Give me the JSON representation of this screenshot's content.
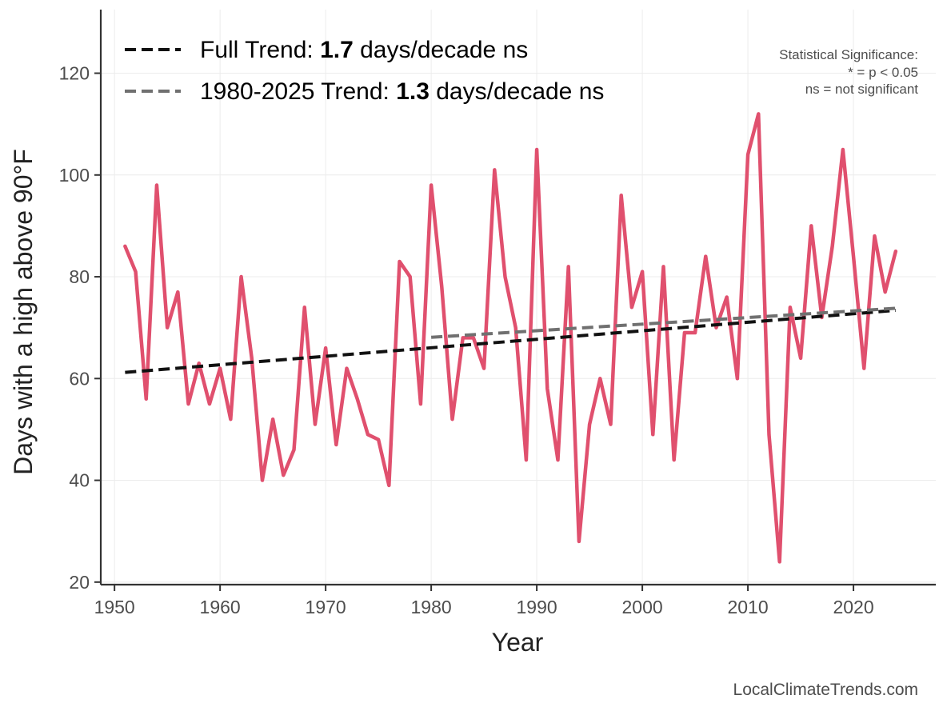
{
  "chart_data": {
    "type": "line",
    "title": "",
    "xlabel": "Year",
    "ylabel": "Days with a high above 90°F",
    "xlim": [
      1948.7,
      2027.8
    ],
    "ylim": [
      19.5,
      132.5
    ],
    "x_ticks": [
      1950,
      1960,
      1970,
      1980,
      1990,
      2000,
      2010,
      2020
    ],
    "y_ticks": [
      20,
      40,
      60,
      80,
      100,
      120
    ],
    "grid": true,
    "series": [
      {
        "name": "Days with a high above 90°F",
        "color": "#e0506e",
        "x": [
          1951,
          1952,
          1953,
          1954,
          1955,
          1956,
          1957,
          1958,
          1959,
          1960,
          1961,
          1962,
          1963,
          1964,
          1965,
          1966,
          1967,
          1968,
          1969,
          1970,
          1971,
          1972,
          1973,
          1974,
          1975,
          1976,
          1977,
          1978,
          1979,
          1980,
          1981,
          1982,
          1983,
          1984,
          1985,
          1986,
          1987,
          1988,
          1989,
          1990,
          1991,
          1992,
          1993,
          1994,
          1995,
          1996,
          1997,
          1998,
          1999,
          2000,
          2001,
          2002,
          2003,
          2004,
          2005,
          2006,
          2007,
          2008,
          2009,
          2010,
          2011,
          2012,
          2013,
          2014,
          2015,
          2016,
          2017,
          2018,
          2019,
          2020,
          2021,
          2022,
          2023,
          2024
        ],
        "values": [
          86,
          81,
          56,
          98,
          70,
          77,
          55,
          63,
          55,
          62,
          52,
          80,
          64,
          40,
          52,
          41,
          46,
          74,
          51,
          66,
          47,
          62,
          56,
          49,
          48,
          39,
          83,
          80,
          55,
          98,
          78,
          52,
          68,
          68,
          62,
          101,
          80,
          70,
          44,
          105,
          58,
          44,
          82,
          28,
          51,
          60,
          51,
          96,
          74,
          81,
          49,
          82,
          44,
          69,
          69,
          84,
          70,
          76,
          60,
          104,
          112,
          49,
          24,
          74,
          64,
          90,
          72,
          86,
          105,
          84,
          62,
          88,
          77,
          85
        ]
      }
    ],
    "trends": [
      {
        "label_prefix": "Full Trend: ",
        "rate": "1.7",
        "label_suffix": " days/decade ns",
        "color": "#111111",
        "x_start": 1951,
        "y_start": 61.2,
        "x_end": 2024,
        "y_end": 73.4
      },
      {
        "label_prefix": "1980-2025 Trend: ",
        "rate": "1.3",
        "label_suffix": " days/decade ns",
        "color": "#707070",
        "x_start": 1980,
        "y_start": 68.1,
        "x_end": 2024,
        "y_end": 73.8
      }
    ],
    "legend_position": "top-left",
    "significance_note": [
      "Statistical Significance:",
      "* = p < 0.05",
      "ns = not significant"
    ],
    "credit": "LocalClimateTrends.com"
  }
}
